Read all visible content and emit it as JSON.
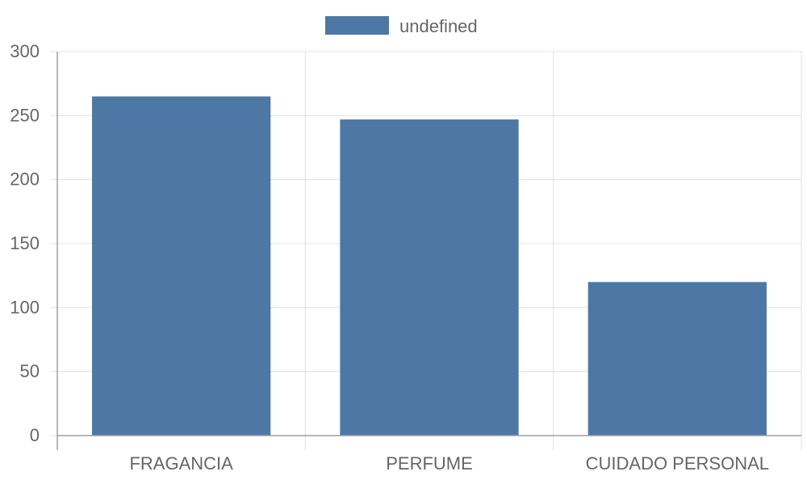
{
  "chart_data": {
    "type": "bar",
    "categories": [
      "FRAGANCIA",
      "PERFUME",
      "CUIDADO PERSONAL"
    ],
    "series": [
      {
        "name": "undefined",
        "values": [
          265,
          247,
          120
        ],
        "color": "#4d78a5"
      }
    ],
    "yticks": [
      "0",
      "50",
      "100",
      "150",
      "200",
      "250",
      "300"
    ],
    "ylim": [
      0,
      300
    ],
    "legend_position": "top-center",
    "grid": true,
    "grid_color": "#e0e0e0",
    "axis_color": "#a0a0a0",
    "text_color": "#666666"
  }
}
